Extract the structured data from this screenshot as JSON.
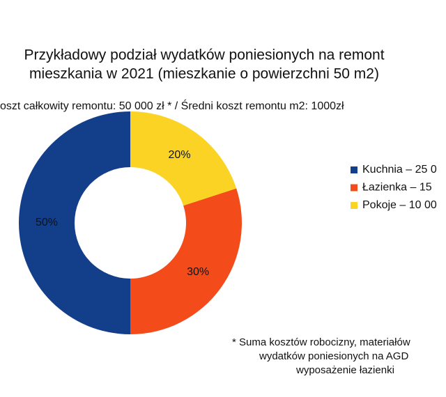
{
  "chart_data": {
    "type": "pie",
    "title": [
      "Przykładowy podział wydatków poniesionych na remont",
      "mieszkania w 2021 (mieszkanie o powierzchni 50 m2)"
    ],
    "subtitle": "oszt całkowity remontu: 50 000 zł * / Średni koszt remontu m2: 1000zł",
    "categories": [
      "Kuchnia – 25 0",
      "Łazienka – 15",
      "Pokoje – 10 00"
    ],
    "values": [
      50,
      30,
      20
    ],
    "value_labels": [
      "50%",
      "30%",
      "20%"
    ],
    "colors": [
      "#133f8a",
      "#f44b1b",
      "#fad325"
    ],
    "donut": true,
    "footnote": [
      "* Suma kosztów robocizny, materiałów",
      "wydatków poniesionych na AGD",
      "wyposażenie łazienki"
    ]
  }
}
